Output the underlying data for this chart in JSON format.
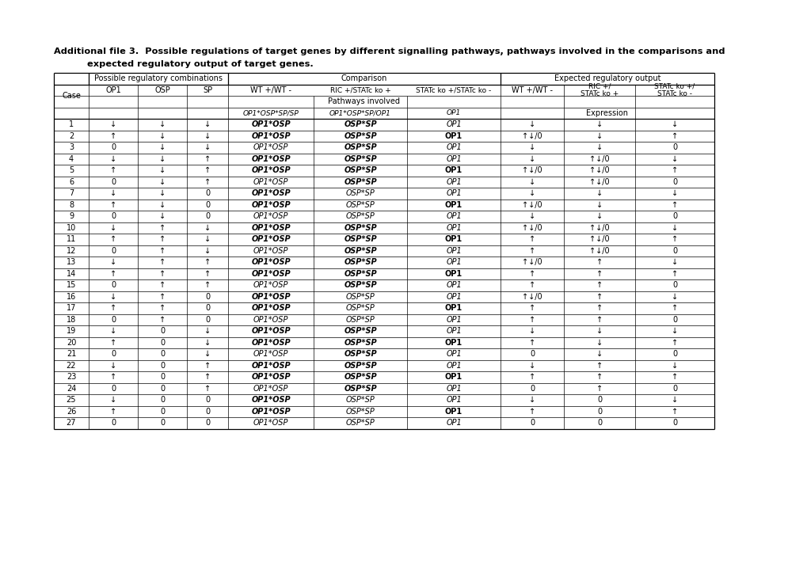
{
  "title_line1": "Additional file 3.  Possible regulations of target genes by different signalling pathways, pathways involved in the comparisons and",
  "title_line2": "expected regulatory output of target genes.",
  "rows": [
    [
      "1",
      "↓",
      "↓",
      "↓",
      "OP1*OSP",
      "OSP*SP",
      "OP1",
      "↓",
      "↓",
      "↓"
    ],
    [
      "2",
      "↑",
      "↓",
      "↓",
      "OP1*OSP",
      "OSP*SP",
      "OP1",
      "↑↓/0",
      "↓",
      "↑"
    ],
    [
      "3",
      "0",
      "↓",
      "↓",
      "OP1*OSP",
      "OSP*SP",
      "OP1",
      "↓",
      "↓",
      "0"
    ],
    [
      "4",
      "↓",
      "↓",
      "↑",
      "OP1*OSP",
      "OSP*SP",
      "OP1",
      "↓",
      "↑↓/0",
      "↓"
    ],
    [
      "5",
      "↑",
      "↓",
      "↑",
      "OP1*OSP",
      "OSP*SP",
      "OP1",
      "↑↓/0",
      "↑↓/0",
      "↑"
    ],
    [
      "6",
      "0",
      "↓",
      "↑",
      "OP1*OSP",
      "OSP*SP",
      "OP1",
      "↓",
      "↑↓/0",
      "0"
    ],
    [
      "7",
      "↓",
      "↓",
      "0",
      "OP1*OSP",
      "OSP*SP",
      "OP1",
      "↓",
      "↓",
      "↓"
    ],
    [
      "8",
      "↑",
      "↓",
      "0",
      "OP1*OSP",
      "OSP*SP",
      "OP1",
      "↑↓/0",
      "↓",
      "↑"
    ],
    [
      "9",
      "0",
      "↓",
      "0",
      "OP1*OSP",
      "OSP*SP",
      "OP1",
      "↓",
      "↓",
      "0"
    ],
    [
      "10",
      "↓",
      "↑",
      "↓",
      "OP1*OSP",
      "OSP*SP",
      "OP1",
      "↑↓/0",
      "↑↓/0",
      "↓"
    ],
    [
      "11",
      "↑",
      "↑",
      "↓",
      "OP1*OSP",
      "OSP*SP",
      "OP1",
      "↑",
      "↑↓/0",
      "↑"
    ],
    [
      "12",
      "0",
      "↑",
      "↓",
      "OP1*OSP",
      "OSP*SP",
      "OP1",
      "↑",
      "↑↓/0",
      "0"
    ],
    [
      "13",
      "↓",
      "↑",
      "↑",
      "OP1*OSP",
      "OSP*SP",
      "OP1",
      "↑↓/0",
      "↑",
      "↓"
    ],
    [
      "14",
      "↑",
      "↑",
      "↑",
      "OP1*OSP",
      "OSP*SP",
      "OP1",
      "↑",
      "↑",
      "↑"
    ],
    [
      "15",
      "0",
      "↑",
      "↑",
      "OP1*OSP",
      "OSP*SP",
      "OP1",
      "↑",
      "↑",
      "0"
    ],
    [
      "16",
      "↓",
      "↑",
      "0",
      "OP1*OSP",
      "OSP*SP",
      "OP1",
      "↑↓/0",
      "↑",
      "↓"
    ],
    [
      "17",
      "↑",
      "↑",
      "0",
      "OP1*OSP",
      "OSP*SP",
      "OP1",
      "↑",
      "↑",
      "↑"
    ],
    [
      "18",
      "0",
      "↑",
      "0",
      "OP1*OSP",
      "OSP*SP",
      "OP1",
      "↑",
      "↑",
      "0"
    ],
    [
      "19",
      "↓",
      "0",
      "↓",
      "OP1*OSP",
      "OSP*SP",
      "OP1",
      "↓",
      "↓",
      "↓"
    ],
    [
      "20",
      "↑",
      "0",
      "↓",
      "OP1*OSP",
      "OSP*SP",
      "OP1",
      "↑",
      "↓",
      "↑"
    ],
    [
      "21",
      "0",
      "0",
      "↓",
      "OP1*OSP",
      "OSP*SP",
      "OP1",
      "0",
      "↓",
      "0"
    ],
    [
      "22",
      "↓",
      "0",
      "↑",
      "OP1*OSP",
      "OSP*SP",
      "OP1",
      "↓",
      "↑",
      "↓"
    ],
    [
      "23",
      "↑",
      "0",
      "↑",
      "OP1*OSP",
      "OSP*SP",
      "OP1",
      "↑",
      "↑",
      "↑"
    ],
    [
      "24",
      "0",
      "0",
      "↑",
      "OP1*OSP",
      "OSP*SP",
      "OP1",
      "0",
      "↑",
      "0"
    ],
    [
      "25",
      "↓",
      "0",
      "0",
      "OP1*OSP",
      "OSP*SP",
      "OP1",
      "↓",
      "0",
      "↓"
    ],
    [
      "26",
      "↑",
      "0",
      "0",
      "OP1*OSP",
      "OSP*SP",
      "OP1",
      "↑",
      "0",
      "↑"
    ],
    [
      "27",
      "0",
      "0",
      "0",
      "OP1*OSP",
      "OSP*SP",
      "OP1",
      "0",
      "0",
      "0"
    ]
  ],
  "col4_bold_italic_cases": [
    2,
    5,
    8,
    11,
    14,
    17,
    20,
    23,
    26
  ],
  "col5_bold_italic_cases": [
    4,
    5,
    6,
    8,
    10,
    11,
    12,
    13,
    15,
    16,
    17,
    19,
    20,
    22,
    23,
    24,
    25,
    26,
    27
  ],
  "col6_bold_cases": [
    2,
    5,
    8,
    11,
    14,
    17,
    20,
    23,
    26
  ]
}
